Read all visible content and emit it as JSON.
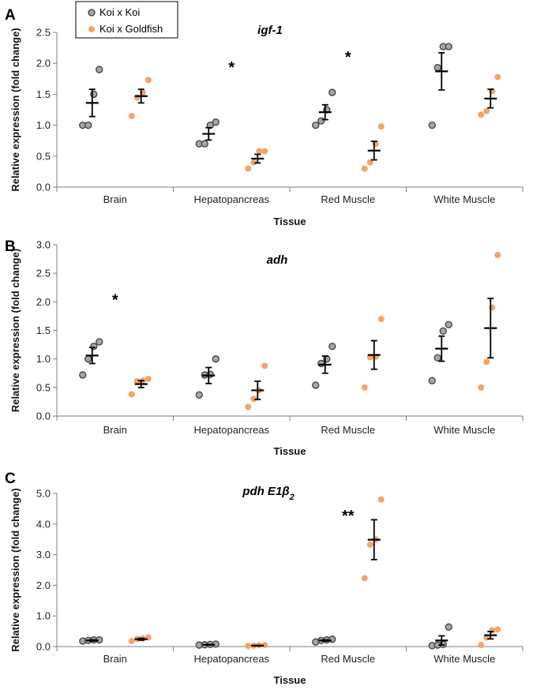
{
  "legend": {
    "items": [
      {
        "label": "Koi x Koi",
        "color": "#a6a6a6"
      },
      {
        "label": "Koi x Goldfish",
        "color": "#f4a46b"
      }
    ]
  },
  "colors": {
    "koi": "#a6a6a6",
    "hybrid": "#f4a46b",
    "axis": "#7f7f7f"
  },
  "chart_data": [
    {
      "type": "scatter",
      "panel": "A",
      "title": "igf-1",
      "xlabel": "Tissue",
      "ylabel": "Relative expression (fold change)",
      "ylim": [
        0,
        2.5
      ],
      "yticks": [
        "0.0",
        "0.5",
        "1.0",
        "1.5",
        "2.0",
        "2.5"
      ],
      "categories": [
        "Brain",
        "Hepatopancreas",
        "Red Muscle",
        "White Muscle"
      ],
      "series": [
        {
          "name": "Koi x Koi",
          "points": [
            [
              1.0,
              1.0,
              1.5,
              1.9
            ],
            [
              0.7,
              0.7,
              1.0,
              1.05
            ],
            [
              1.0,
              1.07,
              1.25,
              1.53
            ],
            [
              1.0,
              1.93,
              2.27,
              2.27
            ]
          ],
          "means": [
            1.36,
            0.86,
            1.21,
            1.87
          ],
          "errors": [
            0.22,
            0.1,
            0.12,
            0.3
          ]
        },
        {
          "name": "Koi x Goldfish",
          "points": [
            [
              1.15,
              1.45,
              1.53,
              1.73
            ],
            [
              0.3,
              0.4,
              0.58,
              0.58
            ],
            [
              0.3,
              0.4,
              0.7,
              0.98
            ],
            [
              1.17,
              1.23,
              1.55,
              1.78
            ]
          ],
          "means": [
            1.47,
            0.46,
            0.59,
            1.43
          ],
          "errors": [
            0.11,
            0.07,
            0.15,
            0.15
          ]
        }
      ],
      "significance": [
        {
          "category": "Hepatopancreas",
          "label": "*",
          "y": 1.95
        },
        {
          "category": "Red Muscle",
          "label": "*",
          "y": 2.12
        }
      ]
    },
    {
      "type": "scatter",
      "panel": "B",
      "title": "adh",
      "xlabel": "Tissue",
      "ylabel": "Relative expression (fold change)",
      "ylim": [
        0,
        3.0
      ],
      "yticks": [
        "0.0",
        "0.5",
        "1.0",
        "1.5",
        "2.0",
        "2.5",
        "3.0"
      ],
      "categories": [
        "Brain",
        "Hepatopancreas",
        "Red Muscle",
        "White Muscle"
      ],
      "series": [
        {
          "name": "Koi x Koi",
          "points": [
            [
              0.72,
              1.0,
              1.22,
              1.3
            ],
            [
              0.37,
              0.72,
              0.73,
              1.0
            ],
            [
              0.54,
              0.92,
              1.0,
              1.22
            ],
            [
              0.62,
              1.02,
              1.49,
              1.6
            ]
          ],
          "means": [
            1.06,
            0.71,
            0.9,
            1.18
          ],
          "errors": [
            0.14,
            0.14,
            0.15,
            0.22
          ]
        },
        {
          "name": "Koi x Goldfish",
          "points": [
            [
              0.38,
              0.61,
              0.62,
              0.65
            ],
            [
              0.16,
              0.3,
              0.45,
              0.88
            ],
            [
              0.5,
              1.03,
              1.04,
              1.7
            ],
            [
              0.5,
              0.95,
              1.9,
              2.82
            ]
          ],
          "means": [
            0.56,
            0.45,
            1.07,
            1.54
          ],
          "errors": [
            0.06,
            0.16,
            0.25,
            0.52
          ]
        }
      ],
      "significance": [
        {
          "category": "Brain",
          "label": "*",
          "y": 2.05
        }
      ]
    },
    {
      "type": "scatter",
      "panel": "C",
      "title": "pdh E1β2",
      "xlabel": "Tissue",
      "ylabel": "Relative expression (fold change)",
      "ylim": [
        0,
        5.0
      ],
      "yticks": [
        "0.0",
        "1.0",
        "2.0",
        "3.0",
        "4.0",
        "5.0"
      ],
      "categories": [
        "Brain",
        "Hepatopancreas",
        "Red Muscle",
        "White Muscle"
      ],
      "series": [
        {
          "name": "Koi x Koi",
          "points": [
            [
              0.18,
              0.2,
              0.22,
              0.22
            ],
            [
              0.05,
              0.06,
              0.07,
              0.08
            ],
            [
              0.15,
              0.2,
              0.22,
              0.24
            ],
            [
              0.03,
              0.05,
              0.07,
              0.64
            ]
          ],
          "means": [
            0.2,
            0.06,
            0.2,
            0.2
          ],
          "errors": [
            0.02,
            0.01,
            0.02,
            0.15
          ]
        },
        {
          "name": "Koi x Goldfish",
          "points": [
            [
              0.18,
              0.25,
              0.27,
              0.3
            ],
            [
              0.02,
              0.03,
              0.04,
              0.05
            ],
            [
              2.23,
              3.33,
              3.5,
              4.8
            ],
            [
              0.05,
              0.3,
              0.53,
              0.56
            ]
          ],
          "means": [
            0.24,
            0.03,
            3.49,
            0.37
          ],
          "errors": [
            0.03,
            0.01,
            0.65,
            0.12
          ]
        }
      ],
      "significance": [
        {
          "category": "Red Muscle",
          "label": "**",
          "y": 4.3
        }
      ]
    }
  ]
}
